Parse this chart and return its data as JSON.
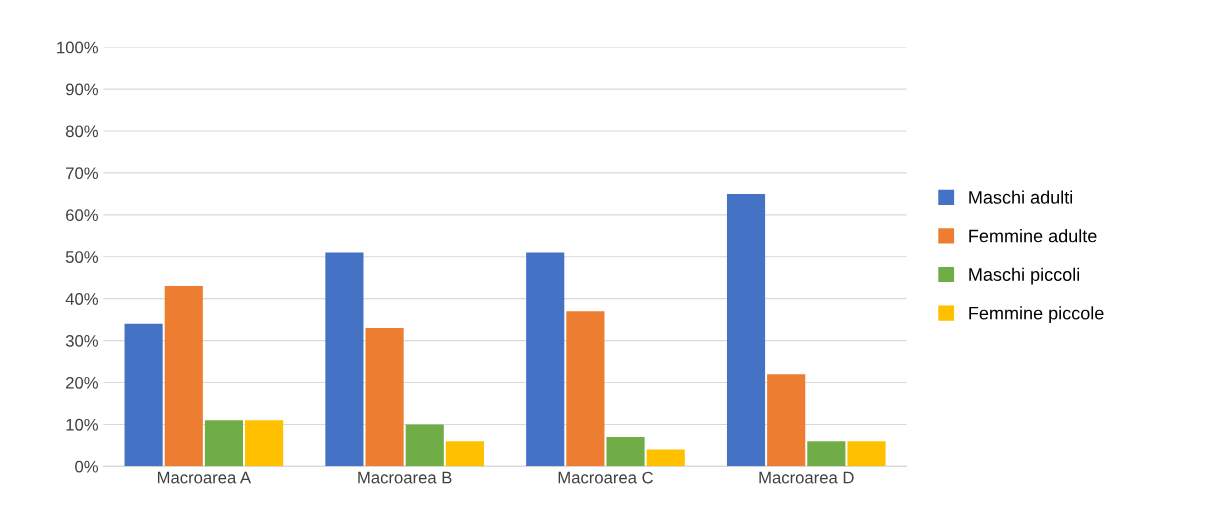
{
  "chart_data": {
    "type": "bar",
    "categories": [
      "Macroarea A",
      "Macroarea B",
      "Macroarea C",
      "Macroarea D"
    ],
    "series": [
      {
        "name": "Maschi adulti",
        "color": "#4472c4",
        "values": [
          34,
          51,
          51,
          65
        ]
      },
      {
        "name": "Femmine adulte",
        "color": "#ed7d31",
        "values": [
          43,
          33,
          37,
          22
        ]
      },
      {
        "name": "Maschi piccoli",
        "color": "#70ad47",
        "values": [
          11,
          10,
          7,
          6
        ]
      },
      {
        "name": "Femmine piccole",
        "color": "#ffc000",
        "values": [
          11,
          6,
          4,
          6
        ]
      }
    ],
    "ylim": [
      0,
      100
    ],
    "yticks": [
      {
        "value": 0,
        "label": "0%"
      },
      {
        "value": 10,
        "label": "10%"
      },
      {
        "value": 20,
        "label": "20%"
      },
      {
        "value": 30,
        "label": "30%"
      },
      {
        "value": 40,
        "label": "40%"
      },
      {
        "value": 50,
        "label": "50%"
      },
      {
        "value": 60,
        "label": "60%"
      },
      {
        "value": 70,
        "label": "70%"
      },
      {
        "value": 80,
        "label": "80%"
      },
      {
        "value": 90,
        "label": "90%"
      },
      {
        "value": 100,
        "label": "100%"
      }
    ],
    "grid": "y",
    "legend": "right"
  }
}
